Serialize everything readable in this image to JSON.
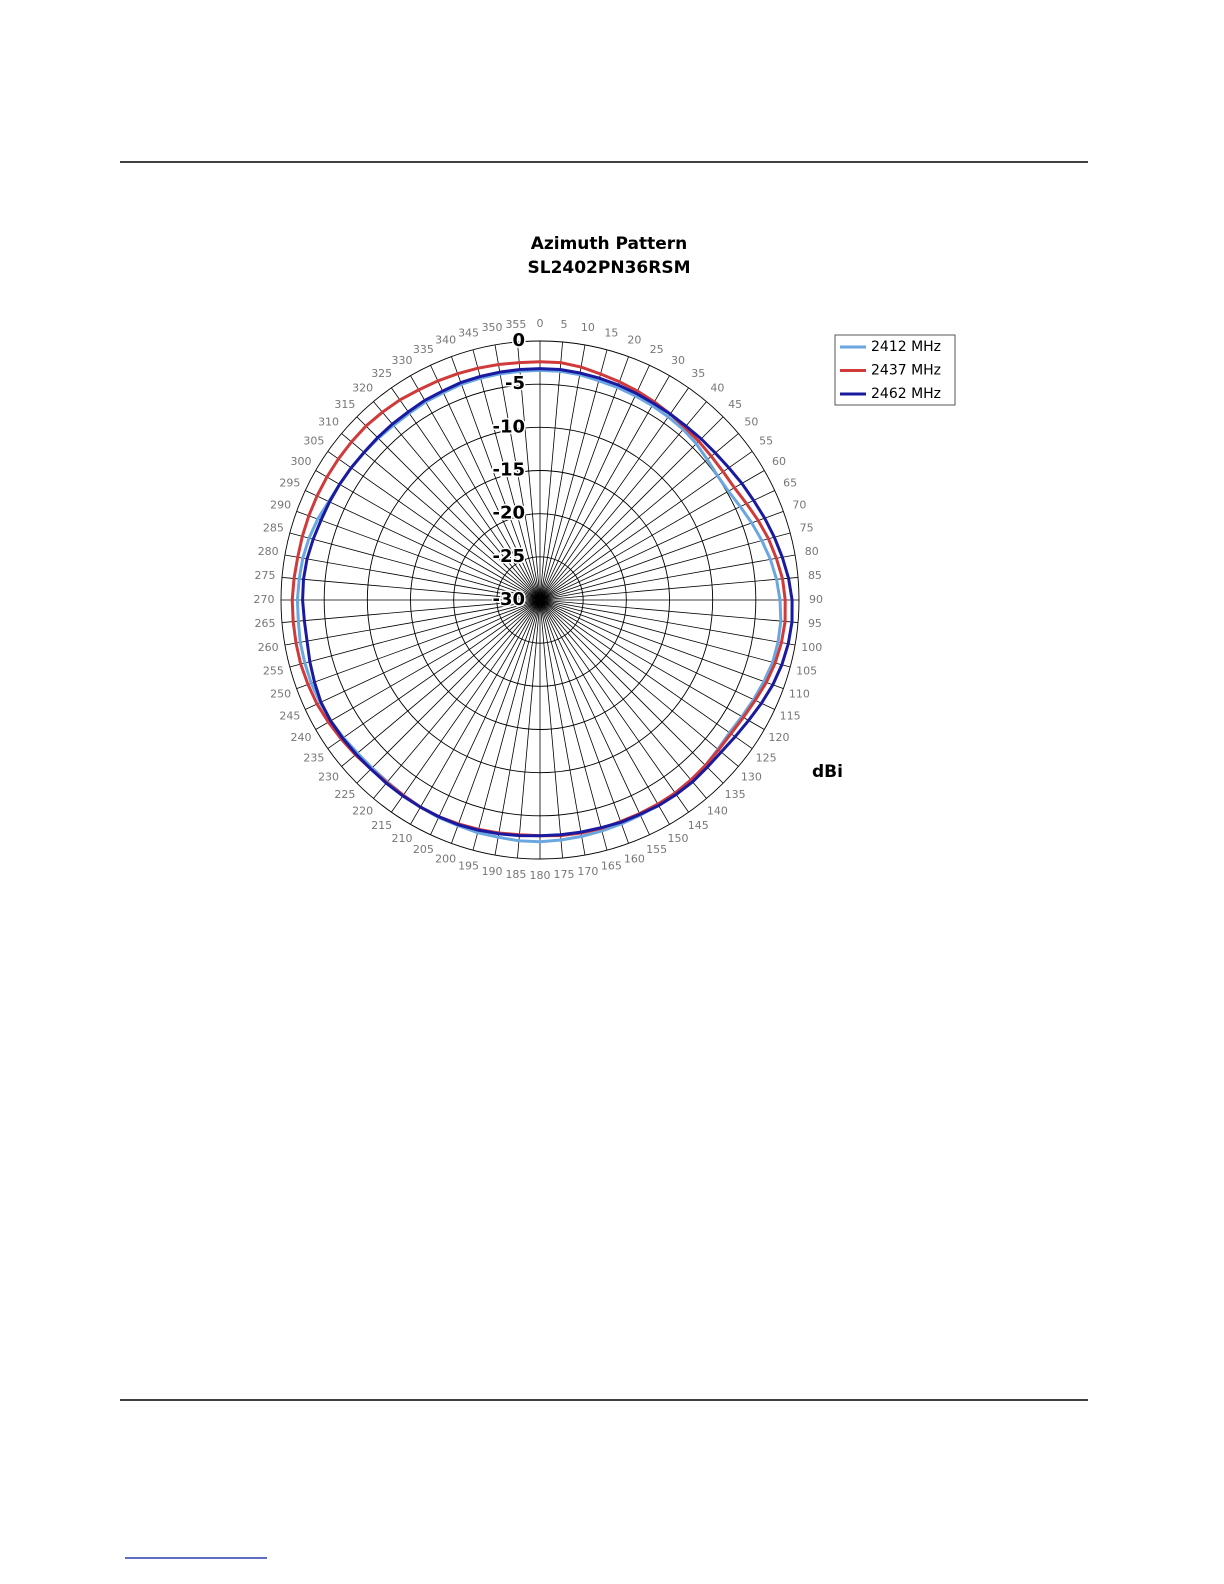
{
  "chart_data": {
    "type": "polar",
    "title": "Azimuth Pattern",
    "subtitle": "SL2402PN36RSM",
    "r_label": "dBi",
    "theta": [
      0,
      5,
      10,
      15,
      20,
      25,
      30,
      35,
      40,
      45,
      50,
      55,
      60,
      65,
      70,
      75,
      80,
      85,
      90,
      95,
      100,
      105,
      110,
      115,
      120,
      125,
      130,
      135,
      140,
      145,
      150,
      155,
      160,
      165,
      170,
      175,
      180,
      185,
      190,
      195,
      200,
      205,
      210,
      215,
      220,
      225,
      230,
      235,
      240,
      245,
      250,
      255,
      260,
      265,
      270,
      275,
      280,
      285,
      290,
      295,
      300,
      305,
      310,
      315,
      320,
      325,
      330,
      335,
      340,
      345,
      350,
      355
    ],
    "rlim": [
      -30,
      0
    ],
    "rticks": [
      0,
      -5,
      -10,
      -15,
      -20,
      -25,
      -30
    ],
    "grid": true,
    "legend": "upper right",
    "series": [
      {
        "name": "2412 MHz",
        "color": "#6aa6e0",
        "values": [
          -3.4,
          -3.4,
          -3.5,
          -3.7,
          -3.8,
          -3.9,
          -4.0,
          -4.1,
          -4.2,
          -4.4,
          -4.7,
          -4.9,
          -4.8,
          -4.4,
          -3.9,
          -3.4,
          -2.9,
          -2.5,
          -2.2,
          -2.0,
          -2.0,
          -2.1,
          -2.4,
          -2.7,
          -3.0,
          -3.2,
          -3.1,
          -2.9,
          -2.8,
          -2.7,
          -2.6,
          -2.5,
          -2.4,
          -2.3,
          -2.2,
          -2.1,
          -2.0,
          -2.0,
          -2.1,
          -2.1,
          -2.2,
          -2.2,
          -2.3,
          -2.4,
          -2.5,
          -2.5,
          -2.4,
          -2.2,
          -2.0,
          -1.9,
          -1.8,
          -1.8,
          -1.8,
          -1.9,
          -1.9,
          -2.0,
          -2.1,
          -2.3,
          -2.6,
          -3.0,
          -3.2,
          -3.3,
          -3.4,
          -3.5,
          -3.6,
          -3.6,
          -3.5,
          -3.5,
          -3.4,
          -3.4,
          -3.4,
          -3.4
        ]
      },
      {
        "name": "2437 MHz",
        "color": "#d03a3a",
        "values": [
          -2.4,
          -2.4,
          -2.6,
          -2.9,
          -3.1,
          -3.3,
          -3.5,
          -3.7,
          -3.9,
          -4.0,
          -4.1,
          -4.1,
          -4.0,
          -3.6,
          -3.1,
          -2.6,
          -2.2,
          -1.8,
          -1.6,
          -1.5,
          -1.6,
          -1.8,
          -2.1,
          -2.5,
          -2.8,
          -3.0,
          -3.0,
          -2.9,
          -2.8,
          -2.7,
          -2.7,
          -2.7,
          -2.7,
          -2.6,
          -2.6,
          -2.6,
          -2.7,
          -2.7,
          -2.6,
          -2.5,
          -2.4,
          -2.3,
          -2.3,
          -2.4,
          -2.4,
          -2.3,
          -2.1,
          -1.9,
          -1.7,
          -1.5,
          -1.4,
          -1.3,
          -1.3,
          -1.3,
          -1.3,
          -1.4,
          -1.5,
          -1.5,
          -1.5,
          -1.5,
          -1.5,
          -1.5,
          -1.5,
          -1.5,
          -1.6,
          -1.7,
          -1.9,
          -2.0,
          -2.1,
          -2.2,
          -2.3,
          -2.4
        ]
      },
      {
        "name": "2462 MHz",
        "color": "#1a1aa0",
        "values": [
          -3.2,
          -3.2,
          -3.3,
          -3.4,
          -3.5,
          -3.6,
          -3.7,
          -3.7,
          -3.7,
          -3.6,
          -3.5,
          -3.3,
          -3.0,
          -2.7,
          -2.3,
          -1.9,
          -1.5,
          -1.1,
          -0.8,
          -0.7,
          -0.8,
          -1.0,
          -1.3,
          -1.7,
          -2.1,
          -2.4,
          -2.6,
          -2.6,
          -2.5,
          -2.5,
          -2.5,
          -2.6,
          -2.6,
          -2.7,
          -2.7,
          -2.7,
          -2.7,
          -2.6,
          -2.5,
          -2.4,
          -2.3,
          -2.3,
          -2.3,
          -2.3,
          -2.3,
          -2.3,
          -2.2,
          -2.1,
          -2.0,
          -2.0,
          -2.2,
          -2.4,
          -2.6,
          -2.6,
          -2.5,
          -2.5,
          -2.6,
          -2.8,
          -3.0,
          -3.1,
          -3.2,
          -3.3,
          -3.4,
          -3.4,
          -3.4,
          -3.4,
          -3.3,
          -3.3,
          -3.2,
          -3.2,
          -3.2,
          -3.2
        ]
      }
    ]
  }
}
